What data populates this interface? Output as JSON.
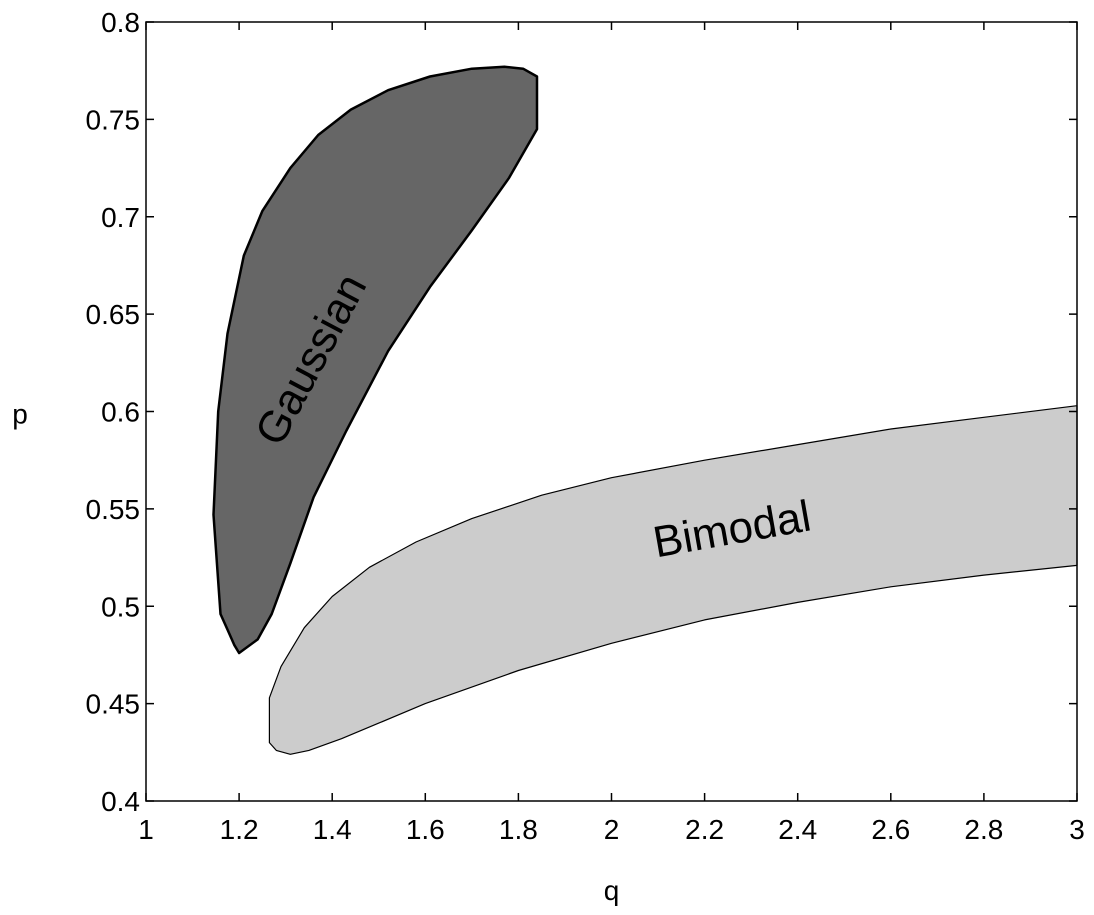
{
  "chart_data": {
    "type": "area",
    "xlabel": "q",
    "ylabel": "p",
    "xlim": [
      1,
      3
    ],
    "ylim": [
      0.4,
      0.8
    ],
    "xticks": [
      1,
      1.2,
      1.4,
      1.6,
      1.8,
      2,
      2.2,
      2.4,
      2.6,
      2.8,
      3
    ],
    "xtick_labels": [
      "1",
      "1.2",
      "1.4",
      "1.6",
      "1.8",
      "2",
      "2.2",
      "2.4",
      "2.6",
      "2.8",
      "3"
    ],
    "yticks": [
      0.4,
      0.45,
      0.5,
      0.55,
      0.6,
      0.65,
      0.7,
      0.75,
      0.8
    ],
    "ytick_labels": [
      "0.4",
      "0.45",
      "0.5",
      "0.55",
      "0.6",
      "0.65",
      "0.7",
      "0.75",
      "0.8"
    ],
    "grid": false,
    "regions": [
      {
        "name": "Gaussian",
        "fill": "#666666",
        "boundary": [
          [
            1.16,
            0.496
          ],
          [
            1.145,
            0.547
          ],
          [
            1.155,
            0.6
          ],
          [
            1.175,
            0.64
          ],
          [
            1.21,
            0.68
          ],
          [
            1.25,
            0.703
          ],
          [
            1.31,
            0.725
          ],
          [
            1.37,
            0.742
          ],
          [
            1.44,
            0.755
          ],
          [
            1.52,
            0.765
          ],
          [
            1.61,
            0.772
          ],
          [
            1.7,
            0.776
          ],
          [
            1.77,
            0.777
          ],
          [
            1.81,
            0.776
          ],
          [
            1.84,
            0.772
          ],
          [
            1.84,
            0.745
          ],
          [
            1.78,
            0.72
          ],
          [
            1.7,
            0.693
          ],
          [
            1.61,
            0.664
          ],
          [
            1.52,
            0.631
          ],
          [
            1.43,
            0.59
          ],
          [
            1.36,
            0.556
          ],
          [
            1.31,
            0.522
          ],
          [
            1.27,
            0.496
          ],
          [
            1.24,
            0.483
          ],
          [
            1.2,
            0.476
          ],
          [
            1.19,
            0.48
          ],
          [
            1.175,
            0.488
          ]
        ],
        "label": "Gaussian",
        "label_at": [
          1.36,
          0.626
        ],
        "label_rotation": -62
      },
      {
        "name": "Bimodal",
        "fill": "#cccccc",
        "boundary": [
          [
            1.265,
            0.453
          ],
          [
            1.29,
            0.469
          ],
          [
            1.34,
            0.489
          ],
          [
            1.4,
            0.505
          ],
          [
            1.48,
            0.52
          ],
          [
            1.58,
            0.533
          ],
          [
            1.7,
            0.545
          ],
          [
            1.85,
            0.557
          ],
          [
            2.0,
            0.566
          ],
          [
            2.2,
            0.575
          ],
          [
            2.4,
            0.583
          ],
          [
            2.6,
            0.591
          ],
          [
            2.8,
            0.597
          ],
          [
            3.0,
            0.603
          ],
          [
            3.0,
            0.521
          ],
          [
            2.8,
            0.516
          ],
          [
            2.6,
            0.51
          ],
          [
            2.4,
            0.502
          ],
          [
            2.2,
            0.493
          ],
          [
            2.0,
            0.481
          ],
          [
            1.8,
            0.467
          ],
          [
            1.6,
            0.45
          ],
          [
            1.5,
            0.44
          ],
          [
            1.42,
            0.432
          ],
          [
            1.35,
            0.426
          ],
          [
            1.31,
            0.424
          ],
          [
            1.28,
            0.426
          ],
          [
            1.265,
            0.43
          ]
        ],
        "label": "Bimodal",
        "label_at": [
          2.26,
          0.538
        ],
        "label_rotation": -10
      }
    ]
  }
}
